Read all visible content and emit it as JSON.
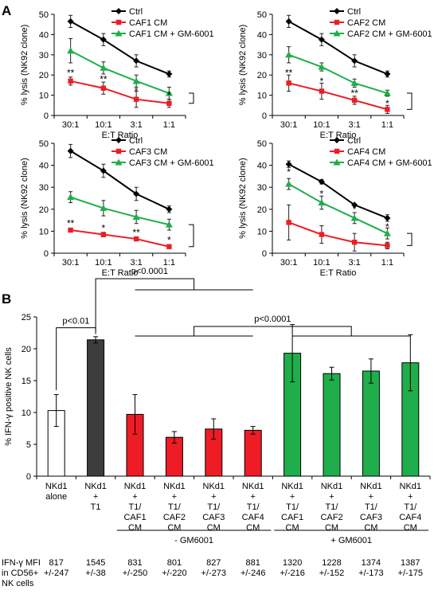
{
  "panel_labels": {
    "a": "A",
    "b": "B"
  },
  "colors": {
    "ctrl": "#000000",
    "caf": "#ee1c25",
    "gm": "#1fae4b",
    "ctrl_bar": "#3d3d3d",
    "alone_bar": "#ffffff"
  },
  "chart_data": [
    {
      "type": "line",
      "ylabel": "% lysis (NK92 clone)",
      "xlabel": "E:T Ratio",
      "categories": [
        "30:1",
        "10:1",
        "3:1",
        "1:1"
      ],
      "ylim": [
        0,
        50
      ],
      "yticks": [
        0,
        10,
        20,
        30,
        40,
        50
      ],
      "legend_position": "top-right",
      "series": [
        {
          "name": "Ctrl",
          "values": [
            46.5,
            37.5,
            27,
            20.5
          ],
          "errors": [
            3,
            3,
            3,
            1.5
          ],
          "marker": "diamond",
          "color": "#000000"
        },
        {
          "name": "CAF1 CM",
          "values": [
            17,
            13.5,
            8,
            6
          ],
          "errors": [
            2,
            3,
            4,
            2
          ],
          "marker": "square",
          "color": "#ee1c25"
        },
        {
          "name": "CAF1 CM + GM-6001",
          "values": [
            32,
            23.5,
            17,
            11
          ],
          "errors": [
            6,
            3,
            3,
            3
          ],
          "marker": "triangle",
          "color": "#1fae4b"
        }
      ],
      "annotations": [
        {
          "text": "**",
          "category": "30:1",
          "y": 21
        },
        {
          "text": "**",
          "category": "10:1",
          "y": 18
        },
        {
          "text": "*",
          "category": "3:1",
          "y": 12
        },
        {
          "text": "*",
          "category": "1:1",
          "y": 10
        }
      ]
    },
    {
      "type": "line",
      "ylabel": "% lysis (NK92 clone)",
      "xlabel": "E:T Ratio",
      "categories": [
        "30:1",
        "10:1",
        "3:1",
        "1:1"
      ],
      "ylim": [
        0,
        50
      ],
      "yticks": [
        0,
        10,
        20,
        30,
        40,
        50
      ],
      "legend_position": "top-right",
      "series": [
        {
          "name": "Ctrl",
          "values": [
            46.5,
            37.5,
            27,
            20.5
          ],
          "errors": [
            3,
            3,
            3,
            1.5
          ],
          "marker": "diamond",
          "color": "#000000"
        },
        {
          "name": "CAF2 CM",
          "values": [
            16,
            12,
            7.5,
            3
          ],
          "errors": [
            4,
            4,
            2,
            2
          ],
          "marker": "square",
          "color": "#ee1c25"
        },
        {
          "name": "CAF2 CM + GM-6001",
          "values": [
            30,
            24,
            16,
            11
          ],
          "errors": [
            4,
            2,
            2,
            1.5
          ],
          "marker": "triangle",
          "color": "#1fae4b"
        }
      ],
      "annotations": [
        {
          "text": "**",
          "category": "30:1",
          "y": 21
        },
        {
          "text": "*",
          "category": "10:1",
          "y": 17
        },
        {
          "text": "**",
          "category": "3:1",
          "y": 11
        },
        {
          "text": "*",
          "category": "1:1",
          "y": 6
        }
      ]
    },
    {
      "type": "line",
      "ylabel": "% lysis (NK92 clone)",
      "xlabel": "E:T Ratio",
      "categories": [
        "30:1",
        "10:1",
        "3:1",
        "1:1"
      ],
      "ylim": [
        0,
        50
      ],
      "yticks": [
        0,
        10,
        20,
        30,
        40,
        50
      ],
      "legend_position": "top-right",
      "series": [
        {
          "name": "Ctrl",
          "values": [
            46.5,
            37.5,
            27,
            20
          ],
          "errors": [
            3,
            3,
            3,
            1.5
          ],
          "marker": "diamond",
          "color": "#000000"
        },
        {
          "name": "CAF3 CM",
          "values": [
            10.5,
            8.5,
            6.5,
            3
          ],
          "errors": [
            0.7,
            1,
            0.5,
            0.4
          ],
          "marker": "square",
          "color": "#ee1c25"
        },
        {
          "name": "CAF3 CM + GM-6001",
          "values": [
            25.5,
            20.5,
            16.5,
            13
          ],
          "errors": [
            2.5,
            3.5,
            3,
            2.5
          ],
          "marker": "triangle",
          "color": "#1fae4b"
        }
      ],
      "annotations": [
        {
          "text": "**",
          "category": "30:1",
          "y": 13.5
        },
        {
          "text": "*",
          "category": "10:1",
          "y": 11.5
        },
        {
          "text": "**",
          "category": "3:1",
          "y": 9.5
        },
        {
          "text": "*",
          "category": "1:1",
          "y": 6
        }
      ]
    },
    {
      "type": "line",
      "ylabel": "% lysis (NK92 clone)",
      "xlabel": "E:T Ratio",
      "categories": [
        "30:1",
        "10:1",
        "3:1",
        "1:1"
      ],
      "ylim": [
        0,
        50
      ],
      "yticks": [
        0,
        10,
        20,
        30,
        40,
        50
      ],
      "legend_position": "top-right",
      "series": [
        {
          "name": "Ctrl",
          "values": [
            40.5,
            32.5,
            22,
            16
          ],
          "errors": [
            1.5,
            1,
            0.5,
            1.5
          ],
          "marker": "diamond",
          "color": "#000000"
        },
        {
          "name": "CAF4 CM",
          "values": [
            14,
            8.5,
            5,
            3.5
          ],
          "errors": [
            8,
            4,
            4,
            1.5
          ],
          "marker": "square",
          "color": "#ee1c25"
        },
        {
          "name": "CAF4 CM + GM-6001",
          "values": [
            31.5,
            23,
            16,
            9
          ],
          "errors": [
            2.5,
            3,
            2.5,
            2.5
          ],
          "marker": "triangle",
          "color": "#1fae4b"
        }
      ],
      "annotations": [
        {
          "text": "*",
          "category": "30:1",
          "y": 37
        },
        {
          "text": "*",
          "category": "10:1",
          "y": 27
        },
        {
          "text": "*",
          "category": "3:1",
          "y": 20
        },
        {
          "text": "*",
          "category": "1:1",
          "y": 12
        }
      ]
    },
    {
      "type": "bar",
      "ylabel": "% IFN-γ positive NK cells",
      "ylim": [
        0,
        25
      ],
      "yticks": [
        0,
        5,
        10,
        15,
        20,
        25
      ],
      "categories": [
        [
          "NKd1",
          "alone"
        ],
        [
          "NKd1",
          "+",
          "T1"
        ],
        [
          "NKd1",
          "+",
          "T1/",
          "CAF1",
          "CM"
        ],
        [
          "NKd1",
          "+",
          "T1/",
          "CAF2",
          "CM"
        ],
        [
          "NKd1",
          "+",
          "T1/",
          "CAF3",
          "CM"
        ],
        [
          "NKd1",
          "+",
          "T1/",
          "CAF4",
          "CM"
        ],
        [
          "NKd1",
          "+",
          "T1/",
          "CAF1",
          "CM"
        ],
        [
          "NKd1",
          "+",
          "T1/",
          "CAF2",
          "CM"
        ],
        [
          "NKd1",
          "+",
          "T1/",
          "CAF3",
          "CM"
        ],
        [
          "NKd1",
          "+",
          "T1/",
          "CAF4",
          "CM"
        ]
      ],
      "values": [
        10.3,
        21.4,
        9.7,
        6.1,
        7.4,
        7.2,
        19.3,
        16.1,
        16.5,
        17.8
      ],
      "errors": [
        2.5,
        0.5,
        3.1,
        0.9,
        1.6,
        0.6,
        4.5,
        1.0,
        1.9,
        4.4
      ],
      "bar_colors": [
        "#ffffff",
        "#3d3d3d",
        "#ee1c25",
        "#ee1c25",
        "#ee1c25",
        "#ee1c25",
        "#1fae4b",
        "#1fae4b",
        "#1fae4b",
        "#1fae4b"
      ],
      "significance": [
        {
          "text": "p<0.01",
          "from": 0,
          "to": 1
        },
        {
          "text": "p<0.0001",
          "from": 1,
          "to": [
            2,
            5
          ]
        },
        {
          "text": "p<0.0001",
          "from": [
            2,
            5
          ],
          "to": [
            6,
            9
          ]
        }
      ],
      "groups": [
        {
          "label": "- GM6001",
          "from": 2,
          "to": 5
        },
        {
          "label": "+ GM6001",
          "from": 6,
          "to": 9
        }
      ],
      "mfi": {
        "title": [
          "IFN-γ MFI",
          "in CD56+",
          "NK cells"
        ],
        "values": [
          "817",
          "1545",
          "831",
          "801",
          "827",
          "881",
          "1320",
          "1228",
          "1374",
          "1387"
        ],
        "sd": [
          "+/-247",
          "+/-38",
          "+/-250",
          "+/-220",
          "+/-273",
          "+/-246",
          "+/-216",
          "+/-152",
          "+/-173",
          "+/-175"
        ]
      }
    }
  ]
}
